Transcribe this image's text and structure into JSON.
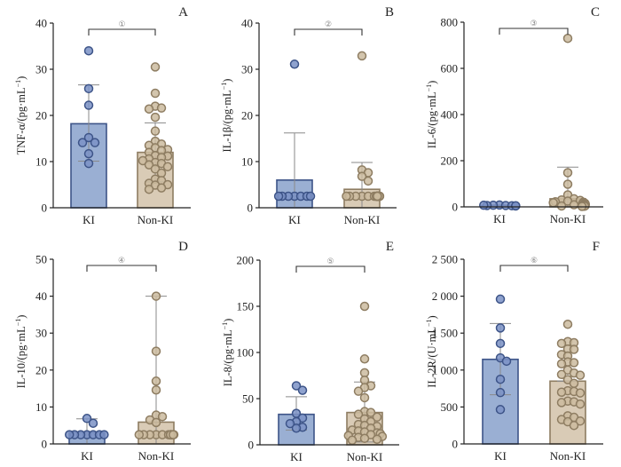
{
  "figure": {
    "groups": [
      "KI",
      "Non-KI"
    ],
    "colors": {
      "KI_fill": "#9aafd3",
      "KI_stroke": "#3d5488",
      "KI_point": "#7b92c6",
      "NonKI_fill": "#d9cbb6",
      "NonKI_stroke": "#8e7d62",
      "NonKI_point": "#cbbb9f",
      "axis": "#222222",
      "errorbar": "#8a8a8a"
    }
  },
  "chart_data": [
    {
      "type": "bar",
      "panel": "A",
      "ylabel": "TNF-α/(pg·mL⁻¹)",
      "ylabel_main": "TNF-α/(pg·mL",
      "ylabel_sup": "−1",
      "ylim": [
        0,
        40
      ],
      "yticks": [
        0,
        10,
        20,
        30,
        40
      ],
      "ytick_labels": [
        "0",
        "10",
        "20",
        "30",
        "40"
      ],
      "categories": [
        "KI",
        "Non-KI"
      ],
      "significance_label": "①",
      "series": [
        {
          "name": "KI",
          "mean": 18.2,
          "sd_upper": 26.6,
          "sd_lower": 10.1,
          "points": [
            34,
            25.8,
            22.2,
            15.2,
            14.1,
            14.1,
            11.7,
            9.6
          ]
        },
        {
          "name": "Non-KI",
          "mean": 12.0,
          "sd_upper": 18.4,
          "sd_lower": 5.6,
          "points": [
            30.5,
            24.8,
            22.0,
            21.6,
            21.4,
            19.6,
            16.6,
            14.4,
            13.8,
            13.5,
            13.0,
            12.6,
            12.4,
            12.0,
            11.3,
            11.2,
            10.9,
            10.6,
            10.2,
            9.8,
            9.6,
            9.3,
            8.9,
            8.4,
            7.5,
            6.2,
            5.9,
            5.3,
            5.0,
            4.9,
            4.3,
            4.0
          ]
        }
      ]
    },
    {
      "type": "bar",
      "panel": "B",
      "ylabel": "IL-1β/(pg·mL⁻¹)",
      "ylabel_main": "IL-1β/(pg·mL",
      "ylabel_sup": "−1",
      "ylim": [
        0,
        40
      ],
      "yticks": [
        0,
        10,
        20,
        30,
        40
      ],
      "ytick_labels": [
        "0",
        "10",
        "20",
        "30",
        "40"
      ],
      "categories": [
        "KI",
        "Non-KI"
      ],
      "significance_label": "②",
      "series": [
        {
          "name": "KI",
          "mean": 6.0,
          "sd_upper": 16.2,
          "sd_lower": 0,
          "points": [
            31.1,
            2.5,
            2.5,
            2.5,
            2.5,
            2.5,
            2.5,
            2.5
          ]
        },
        {
          "name": "Non-KI",
          "mean": 4.0,
          "sd_upper": 9.8,
          "sd_lower": 0,
          "points": [
            32.9,
            8.2,
            7.6,
            6.8,
            5.8,
            2.5,
            2.5,
            2.5,
            2.5,
            2.5,
            2.5,
            2.5,
            2.5,
            2.5,
            2.5,
            2.5,
            2.5,
            2.5,
            2.5,
            2.5,
            2.5,
            2.5,
            2.5,
            2.5,
            2.5,
            2.5,
            2.5,
            2.5,
            2.5,
            2.5
          ]
        }
      ]
    },
    {
      "type": "bar",
      "panel": "C",
      "ylabel": "IL-6/(pg·mL⁻¹)",
      "ylabel_main": "IL-6/(pg·mL",
      "ylabel_sup": "−1",
      "ylim": [
        0,
        800
      ],
      "yticks": [
        0,
        200,
        400,
        600,
        800
      ],
      "ytick_labels": [
        "0",
        "200",
        "400",
        "600",
        "800"
      ],
      "categories": [
        "KI",
        "Non-KI"
      ],
      "significance_label": "③",
      "series": [
        {
          "name": "KI",
          "mean": 6,
          "sd_upper": 9,
          "sd_lower": 3,
          "points": [
            8,
            6,
            7,
            5,
            6,
            4,
            7,
            5
          ]
        },
        {
          "name": "Non-KI",
          "mean": 35,
          "sd_upper": 172,
          "sd_lower": 0,
          "points": [
            730,
            148,
            98,
            52,
            35,
            30,
            28,
            25,
            22,
            20,
            18,
            16,
            15,
            13,
            12,
            11,
            10,
            9,
            8,
            8,
            7,
            6,
            6,
            5,
            5,
            4,
            4,
            3,
            3,
            2
          ]
        }
      ]
    },
    {
      "type": "bar",
      "panel": "D",
      "ylabel": "IL-10/(pg·mL⁻¹)",
      "ylabel_main": "IL-10/(pg·mL",
      "ylabel_sup": "−1",
      "ylim": [
        0,
        50
      ],
      "yticks": [
        0,
        10,
        20,
        30,
        40,
        50
      ],
      "ytick_labels": [
        "0",
        "10",
        "20",
        "30",
        "40",
        "50"
      ],
      "categories": [
        "KI",
        "Non-KI"
      ],
      "significance_label": "④",
      "series": [
        {
          "name": "KI",
          "mean": 3.1,
          "sd_upper": 6.8,
          "sd_lower": 0,
          "points": [
            6.9,
            5.6,
            2.5,
            2.5,
            2.5,
            2.5,
            2.5,
            2.5,
            2.5
          ]
        },
        {
          "name": "Non-KI",
          "mean": 5.9,
          "sd_upper": 40.0,
          "sd_lower": 0,
          "points": [
            40.0,
            25.1,
            17.0,
            14.6,
            7.8,
            7.4,
            6.5,
            5.8,
            2.5,
            2.5,
            2.5,
            2.5,
            2.5,
            2.5,
            2.5,
            2.5,
            2.5,
            2.5,
            2.5,
            2.5,
            2.5,
            2.5,
            2.5,
            2.5,
            2.5,
            2.5,
            2.5,
            2.5
          ]
        }
      ]
    },
    {
      "type": "bar",
      "panel": "E",
      "ylabel": "IL-8/(pg·mL⁻¹)",
      "ylabel_main": "IL-8/(pg·mL",
      "ylabel_sup": "−1",
      "ylim": [
        0,
        200
      ],
      "yticks": [
        0,
        50,
        100,
        150,
        200
      ],
      "ytick_labels": [
        "0",
        "50",
        "100",
        "150",
        "200"
      ],
      "categories": [
        "KI",
        "Non-KI"
      ],
      "significance_label": "⑤",
      "series": [
        {
          "name": "KI",
          "mean": 33,
          "sd_upper": 52,
          "sd_lower": 16,
          "points": [
            64,
            59,
            34,
            29,
            25,
            23,
            19,
            18
          ]
        },
        {
          "name": "Non-KI",
          "mean": 35,
          "sd_upper": 68,
          "sd_lower": 3,
          "points": [
            150,
            93,
            78,
            70,
            64,
            62,
            58,
            51,
            36,
            35,
            33,
            30,
            28,
            25,
            22,
            21,
            20,
            18,
            16,
            15,
            14,
            13,
            12,
            11,
            10,
            9,
            8,
            7,
            6,
            5
          ]
        }
      ]
    },
    {
      "type": "bar",
      "panel": "F",
      "ylabel": "IL-2R/(U·mL⁻¹)",
      "ylabel_main": "IL-2R/(U·mL",
      "ylabel_sup": "−1",
      "ylim": [
        0,
        2500
      ],
      "yticks": [
        0,
        500,
        1000,
        1500,
        2000,
        2500
      ],
      "ytick_labels": [
        "0",
        "500",
        "1 000",
        "1 500",
        "2 000",
        "2 500"
      ],
      "categories": [
        "KI",
        "Non-KI"
      ],
      "significance_label": "⑥",
      "series": [
        {
          "name": "KI",
          "mean": 1145,
          "sd_upper": 1630,
          "sd_lower": 665,
          "points": [
            1960,
            1570,
            1360,
            1165,
            1120,
            875,
            695,
            465
          ]
        },
        {
          "name": "Non-KI",
          "mean": 850,
          "sd_upper": 850,
          "sd_lower": 850,
          "points": [
            1620,
            1385,
            1370,
            1360,
            1285,
            1280,
            1210,
            1190,
            1110,
            1100,
            1085,
            1000,
            960,
            940,
            930,
            870,
            820,
            720,
            710,
            700,
            690,
            580,
            570,
            560,
            540,
            380,
            360,
            330,
            310,
            300,
            250
          ]
        }
      ]
    }
  ]
}
